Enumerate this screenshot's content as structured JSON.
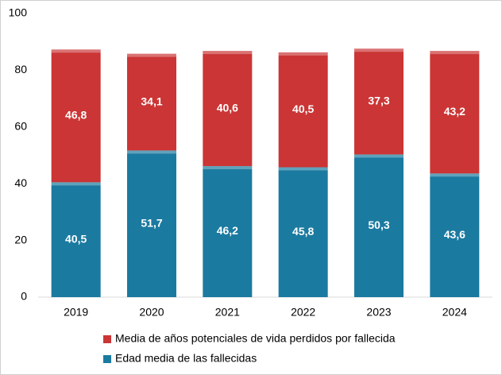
{
  "chart_data": {
    "type": "stacked-bar",
    "categories": [
      "2019",
      "2020",
      "2021",
      "2022",
      "2023",
      "2024"
    ],
    "series": [
      {
        "name": "Edad media de las fallecidas",
        "color": "#1b7aa0",
        "values": [
          40.5,
          51.7,
          46.2,
          45.8,
          50.3,
          43.6
        ],
        "value_labels": [
          "40,5",
          "51,7",
          "46,2",
          "45,8",
          "50,3",
          "43,6"
        ]
      },
      {
        "name": "Media de años potenciales de vida perdidos por fallecida",
        "color": "#cb3535",
        "values": [
          46.8,
          34.1,
          40.6,
          40.5,
          37.3,
          43.2
        ],
        "value_labels": [
          "46,8",
          "34,1",
          "40,6",
          "40,5",
          "37,3",
          "43,2"
        ]
      }
    ],
    "ylim": [
      0,
      100
    ],
    "yticks": [
      0,
      20,
      40,
      60,
      80,
      100
    ],
    "grid": false
  }
}
